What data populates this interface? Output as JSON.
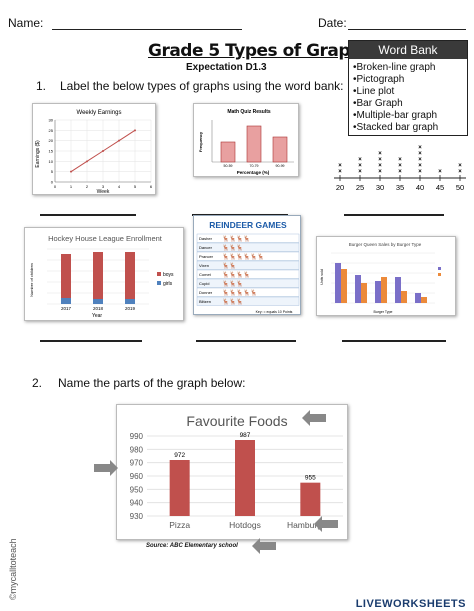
{
  "header": {
    "name_label": "Name:",
    "date_label": "Date:"
  },
  "title": "Grade 5 Types of Graphs",
  "subtitle": "Expectation D1.3",
  "word_bank": {
    "title": "Word Bank",
    "items": [
      "•Broken-line graph",
      "•Pictograph",
      "•Line plot",
      "•Bar Graph",
      "•Multiple-bar graph",
      "•Stacked bar graph"
    ]
  },
  "q1": {
    "number": "1.",
    "text": "Label the below types of graphs using the word bank:"
  },
  "q2": {
    "number": "2.",
    "text": "Name the parts of the graph below:"
  },
  "broken_line": {
    "title": "Weekly Earnings",
    "xlabel": "Week",
    "ylabel": "Earnings ($)",
    "x_ticks": [
      "0",
      "1",
      "2",
      "3",
      "4",
      "5",
      "6"
    ],
    "y_ticks": [
      "0",
      "5",
      "10",
      "15",
      "20",
      "25",
      "30"
    ]
  },
  "quiz_bar": {
    "title": "Math Quiz Results",
    "xlabel": "Percentage (%)",
    "ylabel": "Frequency",
    "categories": [
      "50-59",
      "70-79",
      "90-99"
    ]
  },
  "line_plot": {
    "ticks": [
      "20",
      "25",
      "30",
      "35",
      "40",
      "45",
      "50"
    ]
  },
  "stacked": {
    "title": "Hockey House League Enrollment",
    "xlabel": "Year",
    "ylabel": "Number of children",
    "categories": [
      "2017",
      "2018",
      "2019"
    ],
    "legend": [
      "boys",
      "girls"
    ],
    "colors": {
      "boys": "#c0504d",
      "girls": "#4f81bd"
    }
  },
  "pictograph": {
    "title": "REINDEER GAMES",
    "names": [
      "Dasher",
      "Dancer",
      "Prancer",
      "Vixen",
      "Comet",
      "Cupid",
      "Donner",
      "Blitzen"
    ],
    "icon_counts": [
      4,
      3,
      6,
      2,
      4,
      3,
      5,
      3
    ],
    "key": "Key:  = equals 10 Points"
  },
  "multibar": {
    "title": "Burger Queen Sales by Burger Type",
    "xlabel": "Burger Type",
    "ylabel": "Units sold"
  },
  "foods": {
    "chart_data": {
      "type": "bar",
      "title": "Favourite Foods",
      "categories": [
        "Pizza",
        "Hotdogs",
        "Hamburgers"
      ],
      "values": [
        972,
        987,
        955
      ],
      "data_labels": [
        "972",
        "987",
        "955"
      ],
      "y_ticks": [
        "930",
        "940",
        "950",
        "960",
        "970",
        "980",
        "990"
      ],
      "ylim": [
        930,
        990
      ],
      "grid": true,
      "bar_color": "#c0504d"
    },
    "source": "Source: ABC Elementary school"
  },
  "watermark": "©mycalltoteach",
  "logo": "LIVEWORKSHEETS"
}
